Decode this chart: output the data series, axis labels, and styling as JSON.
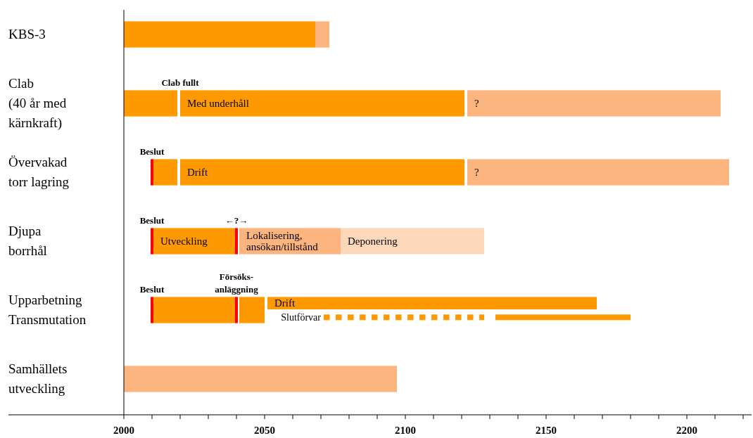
{
  "chart_data": {
    "type": "bar",
    "orientation": "horizontal",
    "categories": [
      "KBS-3",
      "Clab\n(40 år med\nkärnkraft)",
      "Övervakad\ntorr lagring",
      "Djupa\nborrhål",
      "Upparbetning\nTransmutation",
      "Samhällets\nutveckling"
    ],
    "series": [
      {
        "color": "#ff9900",
        "base": [
          2000,
          2000,
          2010.5,
          2010.5,
          2051,
          null
        ],
        "values": [
          68,
          19,
          8.5,
          29,
          117,
          null
        ],
        "value_labels": [
          null,
          null,
          null,
          "Utveckling",
          "Drift",
          null
        ]
      },
      {
        "color": "#ff9900",
        "base": [
          null,
          2020,
          2020,
          null,
          2041,
          null
        ],
        "values": [
          null,
          101,
          101,
          null,
          9,
          null
        ],
        "value_labels": [
          null,
          "Med underhåll",
          "Drift",
          null,
          null,
          null
        ]
      },
      {
        "color": "#ff9900",
        "base": [
          null,
          null,
          null,
          null,
          2010.5,
          null
        ],
        "values": [
          null,
          null,
          null,
          null,
          29,
          null
        ]
      },
      {
        "color": "#fcb57e",
        "base": [
          2068,
          2122,
          2122,
          2041,
          null,
          2000
        ],
        "values": [
          5,
          90,
          93,
          36,
          null,
          97
        ],
        "value_labels": [
          null,
          "?",
          "?",
          "Lokalisering,\nansökan/tillstånd",
          null,
          null
        ]
      },
      {
        "color": "#fdd8bb",
        "base": [
          null,
          null,
          null,
          2077,
          null,
          null
        ],
        "values": [
          null,
          null,
          null,
          51,
          null,
          null
        ],
        "value_labels": [
          null,
          null,
          null,
          "Deponering",
          null,
          null
        ]
      },
      {
        "color": "#ff0000",
        "base": [
          null,
          null,
          2009.5,
          2009.5,
          2009.5,
          null
        ],
        "values": [
          null,
          null,
          1,
          1,
          1,
          null
        ]
      },
      {
        "color": "#ff0000",
        "base": [
          null,
          null,
          null,
          2039.5,
          2039.5,
          null
        ],
        "values": [
          null,
          null,
          null,
          1,
          1,
          null
        ]
      },
      {
        "line_style": "dashed",
        "color": "#ff9900",
        "base": [
          null,
          null,
          null,
          null,
          2071,
          null
        ],
        "values": [
          null,
          null,
          null,
          null,
          57,
          null
        ],
        "value_labels": [
          null,
          null,
          null,
          null,
          "Slutförvar",
          null
        ]
      },
      {
        "line_style": "solid",
        "color": "#ff9900",
        "base": [
          null,
          null,
          null,
          null,
          2132,
          null
        ],
        "values": [
          null,
          null,
          null,
          null,
          48,
          null
        ]
      }
    ],
    "xlim": [
      1959,
      2223
    ],
    "xticks": [
      2000,
      {
        "value": 2010,
        "label": null
      },
      {
        "value": 2020,
        "label": null
      },
      {
        "value": 2030,
        "label": null
      },
      {
        "value": 2040,
        "label": null
      },
      2050,
      {
        "value": 2060,
        "label": null
      },
      {
        "value": 2070,
        "label": null
      },
      {
        "value": 2080,
        "label": null
      },
      {
        "value": 2090,
        "label": null
      },
      2100,
      {
        "value": 2110,
        "label": null
      },
      {
        "value": 2120,
        "label": null
      },
      {
        "value": 2130,
        "label": null
      },
      {
        "value": 2140,
        "label": null
      },
      2150,
      {
        "value": 2160,
        "label": null
      },
      {
        "value": 2170,
        "label": null
      },
      {
        "value": 2180,
        "label": null
      },
      {
        "value": 2190,
        "label": null
      },
      2200,
      {
        "value": 2210,
        "label": null
      },
      {
        "value": 2220,
        "label": null
      }
    ],
    "annotations": [
      {
        "text": "Clab fullt",
        "x": 2020,
        "y": "Clab\n(40 år med\nkärnkraft)"
      },
      {
        "text": "Beslut",
        "x": 2010,
        "y": "Övervakad\ntorr lagring"
      },
      {
        "text": "Beslut",
        "x": 2010,
        "y": "Djupa\nborrhål"
      },
      {
        "text": "←?→",
        "x": 2040,
        "y": "Djupa\nborrhål"
      },
      {
        "text": "Beslut",
        "x": 2010,
        "y": "Upparbetning\nTransmutation"
      },
      {
        "text": "Försöks-\nanläggning",
        "x": 2040,
        "y": "Upparbetning\nTransmutation"
      }
    ]
  }
}
